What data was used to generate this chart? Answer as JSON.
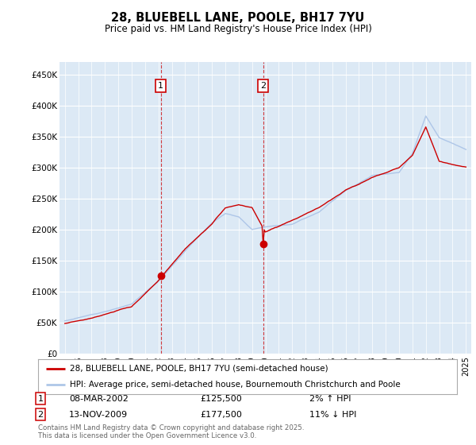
{
  "title_line1": "28, BLUEBELL LANE, POOLE, BH17 7YU",
  "title_line2": "Price paid vs. HM Land Registry's House Price Index (HPI)",
  "ylim": [
    0,
    470000
  ],
  "yticks": [
    0,
    50000,
    100000,
    150000,
    200000,
    250000,
    300000,
    350000,
    400000,
    450000
  ],
  "ytick_labels": [
    "£0",
    "£50K",
    "£100K",
    "£150K",
    "£200K",
    "£250K",
    "£300K",
    "£350K",
    "£400K",
    "£450K"
  ],
  "hpi_color": "#aec6e8",
  "price_color": "#cc0000",
  "bg_color": "#dce9f5",
  "marker1_year": 2002.18,
  "marker1_price": 125500,
  "marker1_label": "08-MAR-2002",
  "marker1_pct": "2% ↑ HPI",
  "marker2_year": 2009.87,
  "marker2_price": 177500,
  "marker2_label": "13-NOV-2009",
  "marker2_pct": "11% ↓ HPI",
  "legend_line1": "28, BLUEBELL LANE, POOLE, BH17 7YU (semi-detached house)",
  "legend_line2": "HPI: Average price, semi-detached house, Bournemouth Christchurch and Poole",
  "footer": "Contains HM Land Registry data © Crown copyright and database right 2025.\nThis data is licensed under the Open Government Licence v3.0.",
  "start_year": 1995,
  "end_year": 2025
}
